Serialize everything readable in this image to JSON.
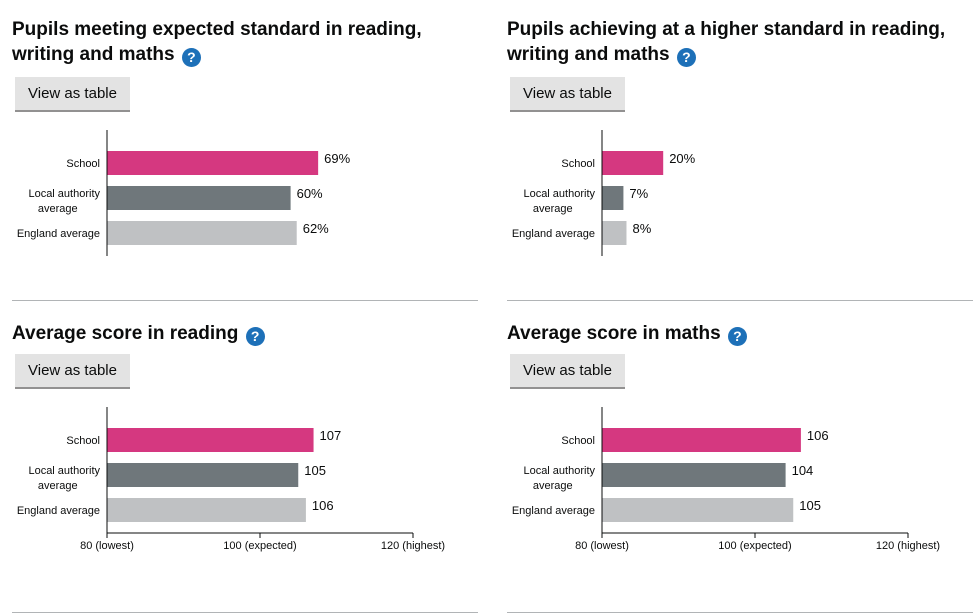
{
  "button_label": "View as table",
  "help_glyph": "?",
  "colors": {
    "school": "#d53880",
    "local": "#6f777b",
    "england": "#bfc1c3",
    "help": "#1d70b8"
  },
  "chart_data": [
    {
      "type": "bar",
      "title": "Pupils meeting expected standard in reading, writing and maths",
      "categories": [
        "School",
        "Local authority average",
        "England average"
      ],
      "values": [
        69,
        60,
        62
      ],
      "value_labels": [
        "69%",
        "60%",
        "62%"
      ],
      "xlim": [
        0,
        100
      ],
      "ticks": []
    },
    {
      "type": "bar",
      "title": "Pupils achieving at a higher standard in reading, writing and maths",
      "categories": [
        "School",
        "Local authority average",
        "England average"
      ],
      "values": [
        20,
        7,
        8
      ],
      "value_labels": [
        "20%",
        "7%",
        "8%"
      ],
      "xlim": [
        0,
        100
      ],
      "ticks": []
    },
    {
      "type": "bar",
      "title": "Average score in reading",
      "categories": [
        "School",
        "Local authority average",
        "England average"
      ],
      "values": [
        107,
        105,
        106
      ],
      "value_labels": [
        "107",
        "105",
        "106"
      ],
      "xlim": [
        80,
        120
      ],
      "ticks": [
        {
          "value": 80,
          "label": "80 (lowest)"
        },
        {
          "value": 100,
          "label": "100 (expected)"
        },
        {
          "value": 120,
          "label": "120 (highest)"
        }
      ]
    },
    {
      "type": "bar",
      "title": "Average score in maths",
      "categories": [
        "School",
        "Local authority average",
        "England average"
      ],
      "values": [
        106,
        104,
        105
      ],
      "value_labels": [
        "106",
        "104",
        "105"
      ],
      "xlim": [
        80,
        120
      ],
      "ticks": [
        {
          "value": 80,
          "label": "80 (lowest)"
        },
        {
          "value": 100,
          "label": "100 (expected)"
        },
        {
          "value": 120,
          "label": "120 (highest)"
        }
      ]
    }
  ]
}
